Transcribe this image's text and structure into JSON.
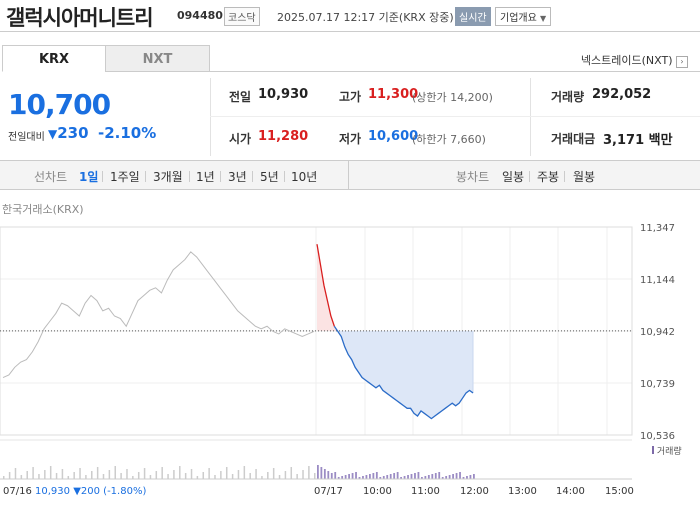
{
  "header": {
    "name": "갤럭시아머니트리",
    "code": "094480",
    "market": "코스닥",
    "time": "2025.07.17 12:17 기준(KRX 장중)",
    "realtime": "실시간",
    "company_btn": "기업개요"
  },
  "tabs": [
    {
      "label": "KRX"
    },
    {
      "label": "NXT"
    }
  ],
  "nxt_link": "넥스트레이드(NXT)",
  "price": {
    "current": "10,700",
    "change_label": "전일대비",
    "change": "230",
    "change_pct": "-2.10%"
  },
  "stats": {
    "prev_label": "전일",
    "prev": "10,930",
    "high_label": "고가",
    "high": "11,300",
    "upper": "(상한가 14,200)",
    "volume_label": "거래량",
    "volume": "292,052",
    "open_label": "시가",
    "open": "11,280",
    "low_label": "저가",
    "low": "10,600",
    "lower": "(하한가 7,660)",
    "amount_label": "거래대금",
    "amount": "3,171 백만"
  },
  "periods": {
    "line_label": "선차트",
    "line_items": [
      "1일",
      "1주일",
      "3개월",
      "1년",
      "3년",
      "5년",
      "10년"
    ],
    "active": "1일",
    "candle_label": "봉차트",
    "candle_items": [
      "일봉",
      "주봉",
      "월봉"
    ]
  },
  "source": "한국거래소(KRX)",
  "chart_data": {
    "type": "line",
    "y_ticks": [
      "11,347",
      "11,144",
      "10,942",
      "10,739",
      "10,536"
    ],
    "ylim": [
      10536,
      11347
    ],
    "reference_price": 10942,
    "x_ticks": [
      "07/17",
      "10:00",
      "11:00",
      "12:00",
      "13:00",
      "14:00",
      "15:00"
    ],
    "prev_day_series": [
      10760,
      10770,
      10800,
      10820,
      10830,
      10860,
      10900,
      10950,
      10980,
      11010,
      11050,
      11040,
      11020,
      11000,
      11050,
      11080,
      11060,
      11020,
      11030,
      11000,
      10990,
      10960,
      11010,
      11060,
      11080,
      11100,
      11110,
      11090,
      11140,
      11180,
      11200,
      11220,
      11250,
      11230,
      11200,
      11170,
      11140,
      11110,
      11080,
      11050,
      11020,
      11000,
      10980,
      10960,
      10950,
      10960,
      10940,
      10930,
      10950,
      10940,
      10930,
      10920,
      10930,
      10940
    ],
    "today_series": [
      11280,
      11200,
      11120,
      11060,
      11000,
      10960,
      10940,
      10920,
      10880,
      10850,
      10830,
      10800,
      10780,
      10760,
      10750,
      10740,
      10730,
      10720,
      10730,
      10710,
      10700,
      10690,
      10680,
      10670,
      10660,
      10650,
      10640,
      10640,
      10620,
      10610,
      10630,
      10620,
      10610,
      10600,
      10610,
      10620,
      10630,
      10640,
      10650,
      10660,
      10650,
      10660,
      10680,
      10700,
      10710,
      10700
    ]
  },
  "volume_label": "거래량",
  "bottom": {
    "date": "07/16",
    "price": "10,930",
    "change": "▼200",
    "pct": "(-1.80%)"
  }
}
